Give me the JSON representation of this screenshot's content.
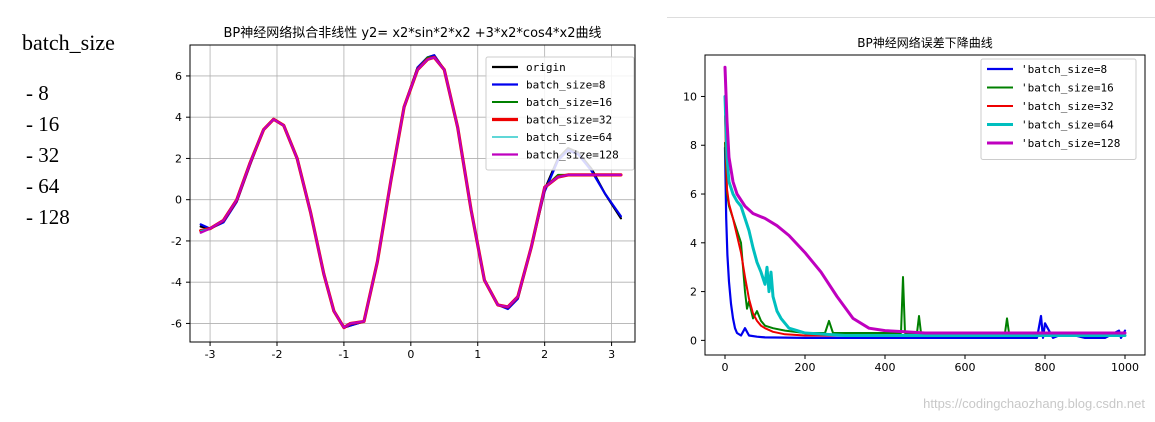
{
  "side_panel": {
    "title": "batch_size",
    "items": [
      "- 8",
      "- 16",
      "- 32",
      "- 64",
      "- 128"
    ]
  },
  "watermark": "https://codingchaozhang.blog.csdn.net",
  "chart_data": [
    {
      "type": "line",
      "title": "BP神经网络拟合非线性   y2= x2*sin*2*x2 +3*x2*cos4*x2曲线",
      "xlim": [
        -3.3,
        3.35
      ],
      "ylim": [
        -6.9,
        7.5
      ],
      "xticks": [
        -3,
        -2,
        -1,
        0,
        1,
        2,
        3
      ],
      "yticks": [
        -6,
        -4,
        -2,
        0,
        2,
        4,
        6
      ],
      "grid": true,
      "legend": "top-right",
      "x": [
        -3.14,
        -3.0,
        -2.8,
        -2.6,
        -2.4,
        -2.2,
        -2.05,
        -1.9,
        -1.7,
        -1.5,
        -1.3,
        -1.15,
        -1.0,
        -0.9,
        -0.7,
        -0.5,
        -0.3,
        -0.1,
        0.1,
        0.25,
        0.35,
        0.5,
        0.7,
        0.9,
        1.1,
        1.3,
        1.45,
        1.6,
        1.8,
        2.0,
        2.2,
        2.35,
        2.5,
        2.7,
        2.9,
        3.14
      ],
      "series": [
        {
          "name": "origin",
          "color": "#000000",
          "width": 2.2,
          "values": [
            -1.3,
            -1.4,
            -1.0,
            0.0,
            1.8,
            3.4,
            3.9,
            3.6,
            2.0,
            -0.6,
            -3.6,
            -5.4,
            -6.2,
            -6.1,
            -5.9,
            -3.0,
            0.9,
            4.5,
            6.4,
            6.9,
            7.0,
            6.3,
            3.5,
            -0.5,
            -3.9,
            -5.1,
            -5.2,
            -4.7,
            -2.3,
            0.5,
            2.0,
            2.5,
            2.3,
            1.5,
            0.3,
            -0.9
          ]
        },
        {
          "name": "batch_size=8",
          "color": "#0000ee",
          "width": 2.2,
          "values": [
            -1.2,
            -1.4,
            -1.1,
            -0.1,
            1.7,
            3.4,
            3.9,
            3.6,
            2.0,
            -0.6,
            -3.6,
            -5.4,
            -6.2,
            -6.1,
            -5.9,
            -3.0,
            0.9,
            4.5,
            6.4,
            6.9,
            7.0,
            6.3,
            3.5,
            -0.5,
            -3.9,
            -5.1,
            -5.3,
            -4.8,
            -2.3,
            0.4,
            1.9,
            2.4,
            2.2,
            1.4,
            0.3,
            -0.8
          ]
        },
        {
          "name": "batch_size=16",
          "color": "#008000",
          "width": 2.0,
          "values": [
            -1.5,
            -1.4,
            -1.0,
            0.0,
            1.8,
            3.4,
            3.9,
            3.6,
            2.0,
            -0.6,
            -3.6,
            -5.4,
            -6.2,
            -6.0,
            -5.9,
            -3.0,
            0.9,
            4.5,
            6.3,
            6.9,
            6.9,
            6.3,
            3.5,
            -0.5,
            -3.9,
            -5.1,
            -5.2,
            -4.7,
            -2.3,
            0.6,
            1.2,
            1.2,
            1.2,
            1.2,
            1.2,
            1.2
          ]
        },
        {
          "name": "batch_size=32",
          "color": "#ee0000",
          "width": 3.2,
          "values": [
            -1.5,
            -1.4,
            -1.0,
            0.0,
            1.8,
            3.4,
            3.9,
            3.6,
            2.0,
            -0.6,
            -3.6,
            -5.4,
            -6.2,
            -6.0,
            -5.9,
            -3.0,
            0.9,
            4.5,
            6.3,
            6.8,
            6.9,
            6.3,
            3.5,
            -0.5,
            -3.9,
            -5.1,
            -5.2,
            -4.7,
            -2.3,
            0.6,
            1.1,
            1.2,
            1.2,
            1.2,
            1.2,
            1.2
          ]
        },
        {
          "name": "batch_size=64",
          "color": "#00bfbf",
          "width": 1.2,
          "values": [
            -1.5,
            -1.4,
            -1.0,
            0.0,
            1.8,
            3.4,
            3.9,
            3.6,
            2.0,
            -0.6,
            -3.6,
            -5.4,
            -6.2,
            -6.0,
            -5.9,
            -3.0,
            0.9,
            4.5,
            6.3,
            6.8,
            6.9,
            6.3,
            3.5,
            -0.5,
            -3.9,
            -5.1,
            -5.2,
            -4.7,
            -2.3,
            0.6,
            1.1,
            1.2,
            1.2,
            1.2,
            1.2,
            1.2
          ]
        },
        {
          "name": "batch_size=128",
          "color": "#bf00bf",
          "width": 2.2,
          "values": [
            -1.6,
            -1.4,
            -1.0,
            0.0,
            1.8,
            3.4,
            3.9,
            3.6,
            2.0,
            -0.6,
            -3.6,
            -5.4,
            -6.2,
            -6.0,
            -5.9,
            -3.0,
            0.9,
            4.5,
            6.3,
            6.8,
            6.9,
            6.3,
            3.5,
            -0.5,
            -3.9,
            -5.1,
            -5.2,
            -4.7,
            -2.3,
            0.6,
            1.1,
            1.2,
            1.2,
            1.2,
            1.2,
            1.2
          ]
        }
      ]
    },
    {
      "type": "line",
      "title": "BP神经网络误差下降曲线",
      "xlim": [
        -50,
        1050
      ],
      "ylim": [
        -0.6,
        11.7
      ],
      "xticks": [
        0,
        200,
        400,
        600,
        800,
        1000
      ],
      "yticks": [
        0,
        2,
        4,
        6,
        8,
        10
      ],
      "grid": false,
      "legend": "top-right",
      "series": [
        {
          "name": "'batch_size=8",
          "color": "#0000ee",
          "width": 2.2,
          "x": [
            0,
            3,
            6,
            10,
            15,
            20,
            25,
            30,
            40,
            50,
            60,
            80,
            100,
            200,
            300,
            400,
            500,
            600,
            700,
            780,
            790,
            795,
            800,
            820,
            850,
            900,
            950,
            985,
            990,
            1000
          ],
          "values": [
            7.9,
            5.0,
            3.5,
            2.4,
            1.5,
            0.9,
            0.5,
            0.3,
            0.2,
            0.5,
            0.2,
            0.15,
            0.12,
            0.1,
            0.1,
            0.1,
            0.1,
            0.1,
            0.1,
            0.1,
            1.0,
            0.1,
            0.7,
            0.1,
            0.3,
            0.1,
            0.1,
            0.4,
            0.1,
            0.4
          ]
        },
        {
          "name": "'batch_size=16",
          "color": "#008000",
          "width": 2.0,
          "x": [
            0,
            5,
            10,
            20,
            30,
            40,
            45,
            50,
            55,
            60,
            70,
            80,
            90,
            100,
            120,
            150,
            200,
            250,
            260,
            270,
            300,
            400,
            440,
            445,
            450,
            480,
            485,
            490,
            600,
            700,
            705,
            710,
            800,
            900,
            1000
          ],
          "values": [
            8.1,
            6.0,
            5.5,
            5.0,
            4.5,
            4.0,
            3.0,
            2.0,
            1.3,
            1.6,
            0.9,
            1.2,
            0.8,
            0.6,
            0.5,
            0.4,
            0.3,
            0.3,
            0.8,
            0.3,
            0.3,
            0.3,
            0.3,
            2.6,
            0.3,
            0.3,
            1.0,
            0.3,
            0.3,
            0.3,
            0.9,
            0.3,
            0.3,
            0.3,
            0.3
          ]
        },
        {
          "name": "'batch_size=32",
          "color": "#ee0000",
          "width": 2.0,
          "x": [
            0,
            5,
            10,
            20,
            30,
            40,
            50,
            60,
            70,
            80,
            90,
            100,
            120,
            150,
            200,
            300,
            400,
            600,
            800,
            1000
          ],
          "values": [
            9.2,
            6.2,
            5.6,
            5.0,
            4.3,
            3.6,
            2.6,
            1.7,
            1.1,
            0.8,
            0.6,
            0.5,
            0.35,
            0.25,
            0.2,
            0.2,
            0.2,
            0.2,
            0.2,
            0.2
          ]
        },
        {
          "name": "'batch_size=64",
          "color": "#00bfbf",
          "width": 3.0,
          "x": [
            0,
            5,
            10,
            20,
            30,
            40,
            50,
            60,
            70,
            80,
            90,
            100,
            105,
            110,
            115,
            120,
            130,
            140,
            150,
            160,
            180,
            200,
            250,
            300,
            400,
            500,
            600,
            800,
            1000
          ],
          "values": [
            10.0,
            7.5,
            6.5,
            6.0,
            5.7,
            5.5,
            5.0,
            4.5,
            3.8,
            3.2,
            2.8,
            2.3,
            3.0,
            2.0,
            2.8,
            1.8,
            1.2,
            0.9,
            0.7,
            0.5,
            0.4,
            0.3,
            0.25,
            0.2,
            0.2,
            0.2,
            0.2,
            0.2,
            0.2
          ]
        },
        {
          "name": "'batch_size=128",
          "color": "#bf00bf",
          "width": 3.0,
          "x": [
            0,
            5,
            10,
            20,
            30,
            50,
            70,
            100,
            130,
            160,
            200,
            240,
            280,
            320,
            360,
            400,
            450,
            500,
            600,
            700,
            800,
            900,
            1000
          ],
          "values": [
            11.2,
            9.0,
            7.5,
            6.5,
            6.0,
            5.5,
            5.2,
            5.0,
            4.7,
            4.3,
            3.6,
            2.8,
            1.8,
            0.9,
            0.5,
            0.4,
            0.35,
            0.3,
            0.3,
            0.3,
            0.3,
            0.3,
            0.3
          ]
        }
      ]
    }
  ]
}
